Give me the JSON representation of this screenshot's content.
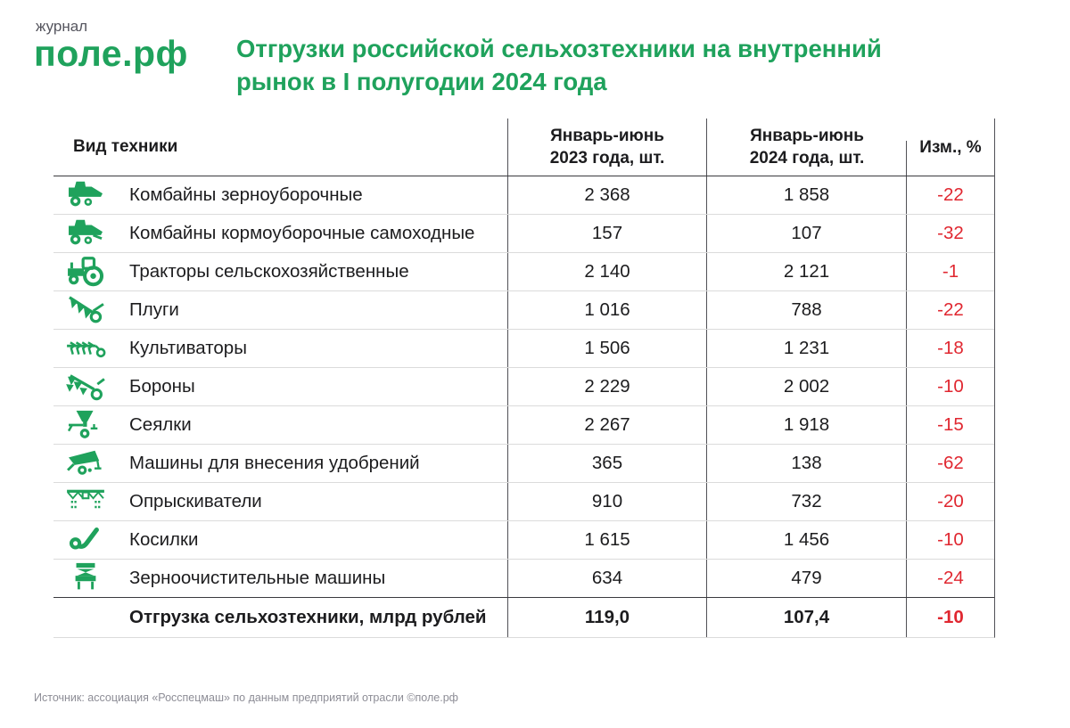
{
  "colors": {
    "brand_green": "#1FA25C",
    "negative_red": "#E02730",
    "text": "#1C1C1E",
    "muted_text": "#8D8D96",
    "grid_light": "#DBDBDB",
    "grid_dark": "#3A3A3E",
    "grid_vertical": "#515156"
  },
  "logo": {
    "kicker": "журнал",
    "name": "поле.рф"
  },
  "title": "Отгрузки российской сельхозтехники на внутренний\nрынок в I полугодии 2024 года",
  "table": {
    "columns": [
      "Вид техники",
      "Январь-июнь\n2023 года, шт.",
      "Январь-июнь\n2024 года, шт.",
      "Изм., %"
    ],
    "rows": [
      {
        "icon": "combine-harvester-icon",
        "label": "Комбайны зерноуборочные",
        "y2023": "2 368",
        "y2024": "1 858",
        "change": "-22"
      },
      {
        "icon": "forage-harvester-icon",
        "label": "Комбайны кормоуборочные самоходные",
        "y2023": "157",
        "y2024": "107",
        "change": "-32"
      },
      {
        "icon": "tractor-icon",
        "label": "Тракторы сельскохозяйственные",
        "y2023": "2 140",
        "y2024": "2 121",
        "change": "-1"
      },
      {
        "icon": "plow-icon",
        "label": "Плуги",
        "y2023": "1 016",
        "y2024": "788",
        "change": "-22"
      },
      {
        "icon": "cultivator-icon",
        "label": "Культиваторы",
        "y2023": "1 506",
        "y2024": "1 231",
        "change": "-18"
      },
      {
        "icon": "harrow-icon",
        "label": "Бороны",
        "y2023": "2 229",
        "y2024": "2 002",
        "change": "-10"
      },
      {
        "icon": "seeder-icon",
        "label": "Сеялки",
        "y2023": "2 267",
        "y2024": "1 918",
        "change": "-15"
      },
      {
        "icon": "fertilizer-spreader-icon",
        "label": "Машины для внесения удобрений",
        "y2023": "365",
        "y2024": "138",
        "change": "-62"
      },
      {
        "icon": "sprayer-icon",
        "label": "Опрыскиватели",
        "y2023": "910",
        "y2024": "732",
        "change": "-20"
      },
      {
        "icon": "mower-icon",
        "label": "Косилки",
        "y2023": "1 615",
        "y2024": "1 456",
        "change": "-10"
      },
      {
        "icon": "grain-cleaner-icon",
        "label": "Зерноочистительные машины",
        "y2023": "634",
        "y2024": "479",
        "change": "-24"
      }
    ],
    "summary": {
      "label": "Отгрузка сельхозтехники, млрд рублей",
      "y2023": "119,0",
      "y2024": "107,4",
      "change": "-10"
    }
  },
  "source": "Источник: ассоциация «Росспецмаш» по данным предприятий отрасли ©поле.рф",
  "chart_data": {
    "type": "table",
    "title": "Отгрузки российской сельхозтехники на внутренний рынок в I полугодии 2024 года",
    "columns": [
      "Вид техники",
      "Январь-июнь 2023 года, шт.",
      "Январь-июнь 2024 года, шт.",
      "Изм., %"
    ],
    "rows": [
      [
        "Комбайны зерноуборочные",
        2368,
        1858,
        -22
      ],
      [
        "Комбайны кормоуборочные самоходные",
        157,
        107,
        -32
      ],
      [
        "Тракторы сельскохозяйственные",
        2140,
        2121,
        -1
      ],
      [
        "Плуги",
        1016,
        788,
        -22
      ],
      [
        "Культиваторы",
        1506,
        1231,
        -18
      ],
      [
        "Бороны",
        2229,
        2002,
        -10
      ],
      [
        "Сеялки",
        2267,
        1918,
        -15
      ],
      [
        "Машины для внесения удобрений",
        365,
        138,
        -62
      ],
      [
        "Опрыскиватели",
        910,
        732,
        -20
      ],
      [
        "Косилки",
        1615,
        1456,
        -10
      ],
      [
        "Зерноочистительные машины",
        634,
        479,
        -24
      ],
      [
        "Отгрузка сельхозтехники, млрд рублей",
        119.0,
        107.4,
        -10
      ]
    ]
  }
}
